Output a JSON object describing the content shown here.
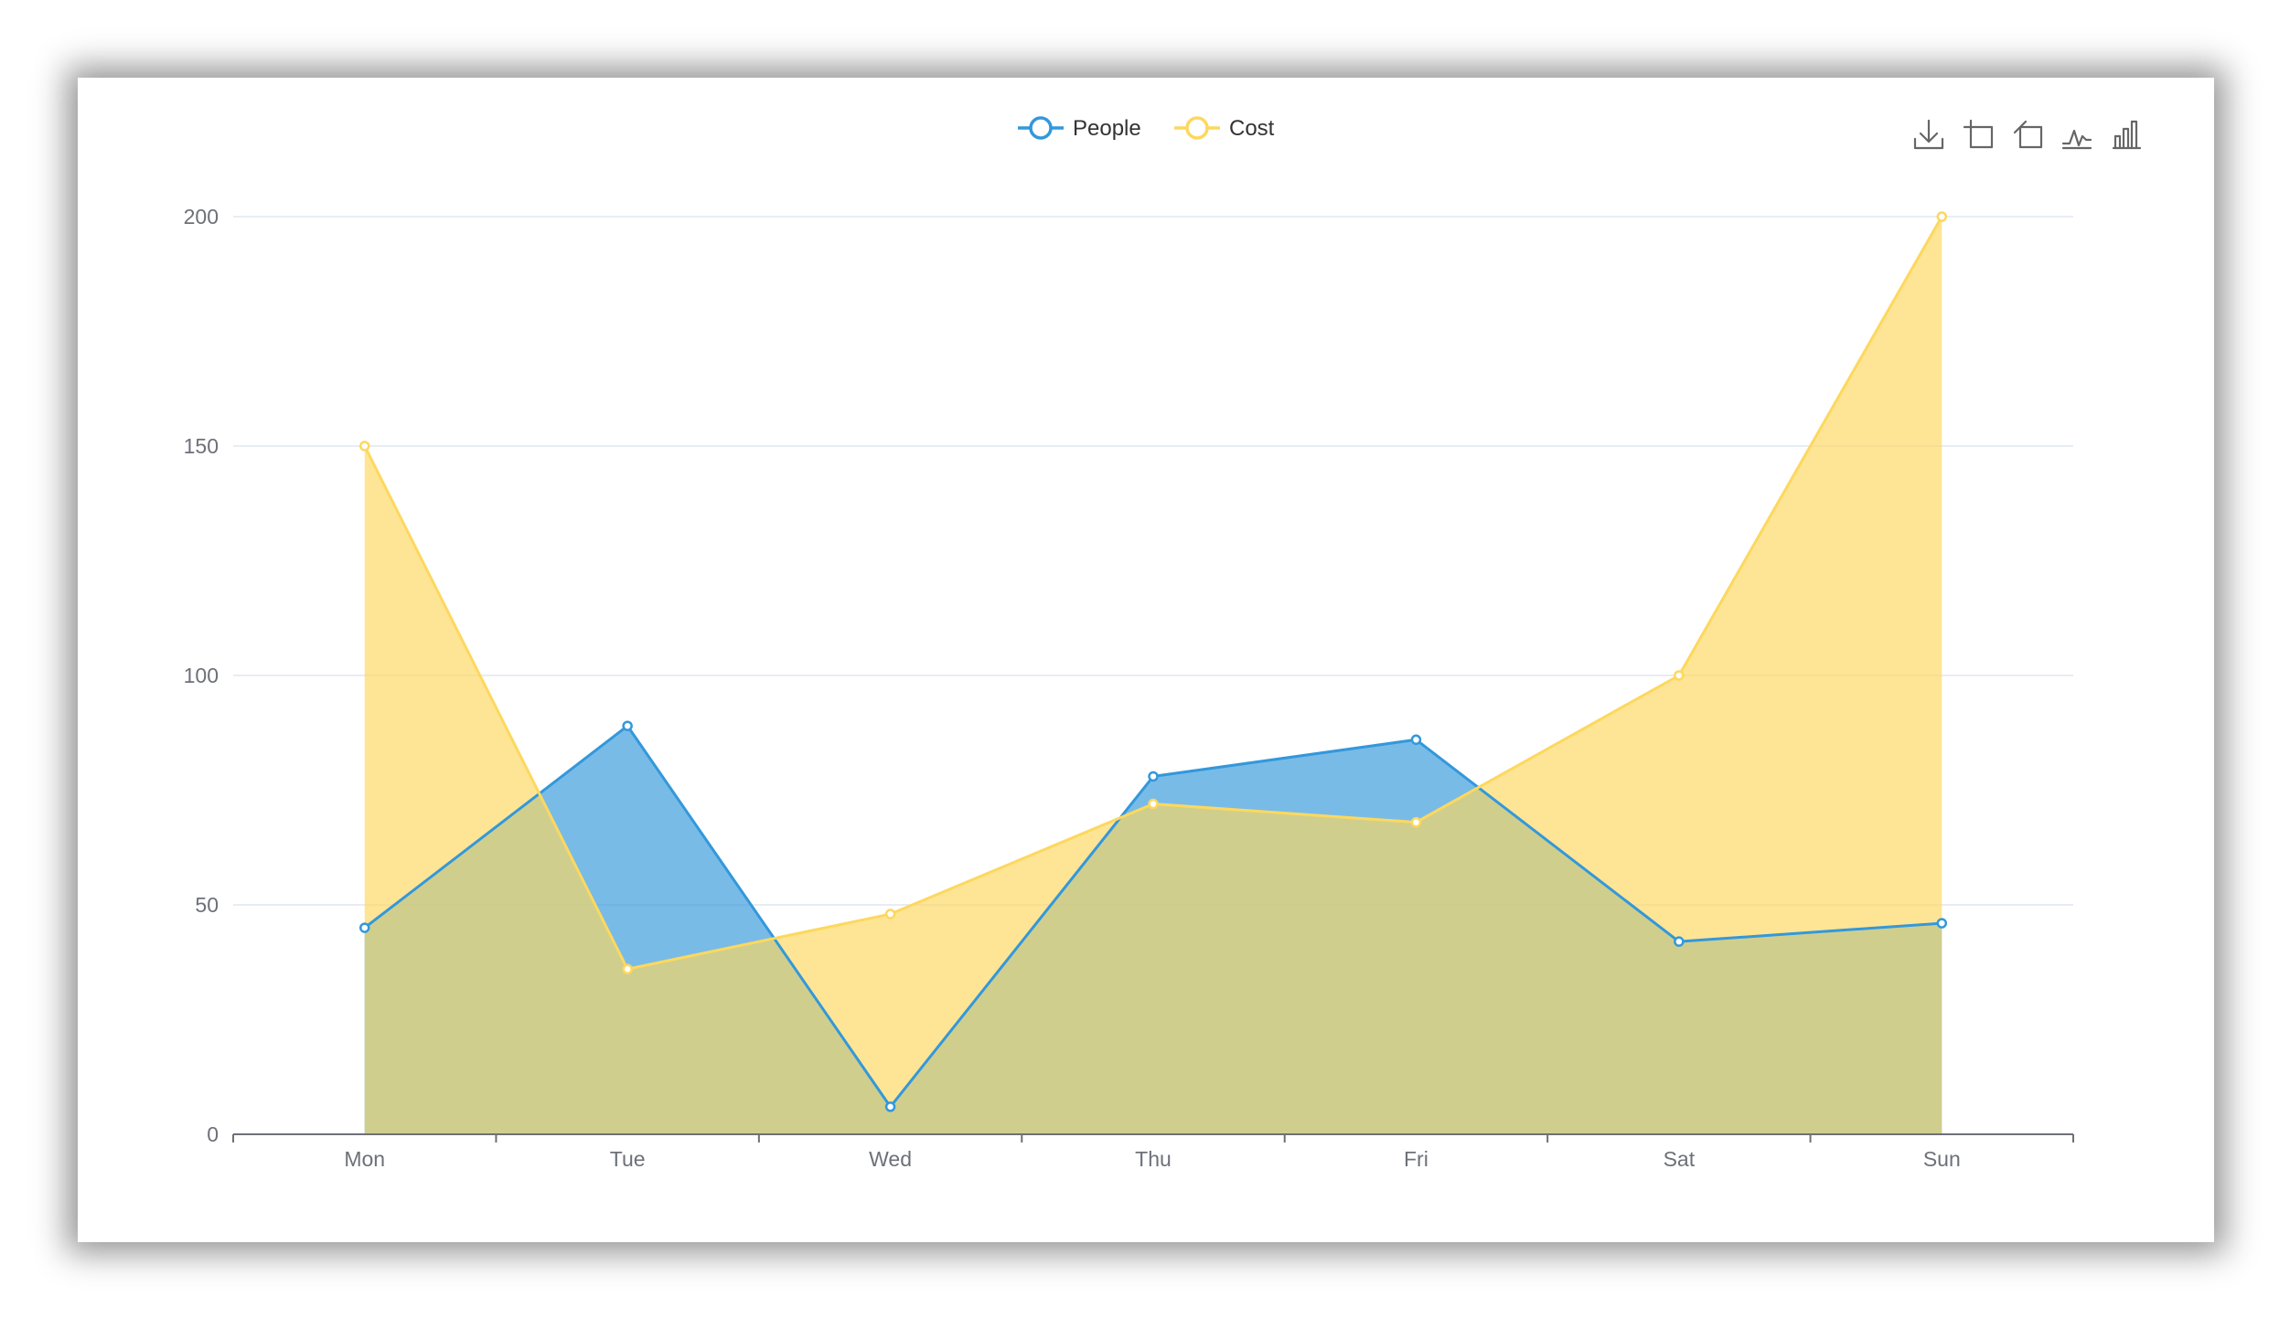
{
  "legend": [
    {
      "label": "People",
      "color": "#3398db"
    },
    {
      "label": "Cost",
      "color": "#fdd85e"
    }
  ],
  "toolbox": [
    {
      "name": "download-icon",
      "title": "Save as image"
    },
    {
      "name": "zoom-icon",
      "title": "Zoom"
    },
    {
      "name": "zoom-reset-icon",
      "title": "Zoom reset"
    },
    {
      "name": "line-chart-icon",
      "title": "Switch to line chart"
    },
    {
      "name": "bar-chart-icon",
      "title": "Switch to bar chart"
    }
  ],
  "chart_data": {
    "type": "area",
    "categories": [
      "Mon",
      "Tue",
      "Wed",
      "Thu",
      "Fri",
      "Sat",
      "Sun"
    ],
    "series": [
      {
        "name": "People",
        "color": "#3398db",
        "values": [
          45,
          89,
          6,
          78,
          86,
          42,
          46
        ]
      },
      {
        "name": "Cost",
        "color": "#fdd85e",
        "values": [
          150,
          36,
          48,
          72,
          68,
          100,
          200
        ]
      }
    ],
    "ylim": [
      0,
      200
    ],
    "yticks": [
      0,
      50,
      100,
      150,
      200
    ],
    "grid": true,
    "legend_position": "top-center"
  }
}
